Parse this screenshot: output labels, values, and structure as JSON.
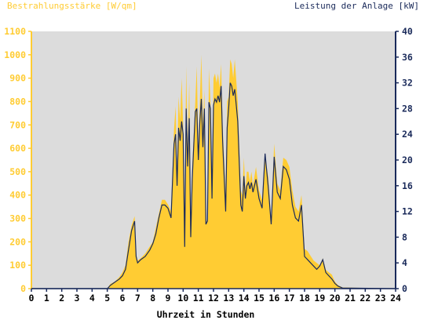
{
  "chart_data": {
    "type": "area",
    "title_left": "Bestrahlungsstärke [W/qm]",
    "title_right": "Leistung der Anlage [kW]",
    "xlabel": "Uhrzeit in Stunden",
    "x_ticks": [
      "0",
      "1",
      "2",
      "3",
      "4",
      "5",
      "6",
      "7",
      "8",
      "9",
      "10",
      "11",
      "12",
      "13",
      "14",
      "15",
      "16",
      "17",
      "18",
      "19",
      "20",
      "21",
      "22",
      "23",
      "24"
    ],
    "xlim": [
      0,
      24
    ],
    "y_left_ticks": [
      "0",
      "100",
      "200",
      "300",
      "400",
      "500",
      "600",
      "700",
      "800",
      "900",
      "1000",
      "1100"
    ],
    "ylim_left": [
      0,
      1100
    ],
    "y_right_ticks": [
      "0",
      "4",
      "8",
      "12",
      "16",
      "20",
      "24",
      "28",
      "32",
      "36",
      "40"
    ],
    "ylim_right": [
      0,
      40
    ],
    "grid": false,
    "colors": {
      "plot_background": "#dcdcdc",
      "irradiance_fill": "#ffcc33",
      "power_line": "#1a2a5a",
      "left_axis": "#ffcc33",
      "right_axis": "#1a2a5a",
      "axis_text_left": "#ffcc33",
      "axis_text_right": "#1a2a5a"
    },
    "series": [
      {
        "axis": "left",
        "style": "filled-area",
        "x": [
          0,
          5.0,
          5.2,
          5.5,
          5.8,
          6.0,
          6.2,
          6.4,
          6.6,
          6.8,
          6.9,
          7.0,
          7.2,
          7.5,
          7.8,
          8.0,
          8.2,
          8.4,
          8.6,
          8.8,
          9.0,
          9.2,
          9.4,
          9.5,
          9.6,
          9.7,
          9.8,
          9.9,
          10.0,
          10.1,
          10.2,
          10.3,
          10.4,
          10.5,
          10.6,
          10.8,
          10.9,
          11.0,
          11.1,
          11.2,
          11.3,
          11.4,
          11.5,
          11.6,
          11.7,
          11.8,
          11.9,
          12.0,
          12.1,
          12.2,
          12.3,
          12.4,
          12.5,
          12.6,
          12.8,
          12.9,
          13.0,
          13.1,
          13.2,
          13.3,
          13.4,
          13.6,
          13.8,
          13.9,
          14.0,
          14.1,
          14.2,
          14.3,
          14.4,
          14.5,
          14.6,
          14.8,
          15.0,
          15.2,
          15.4,
          15.6,
          15.8,
          16.0,
          16.2,
          16.4,
          16.6,
          16.8,
          17.0,
          17.2,
          17.4,
          17.6,
          17.8,
          18.0,
          18.2,
          18.4,
          18.6,
          18.8,
          19.0,
          19.2,
          19.4,
          19.6,
          19.8,
          20.0,
          20.2,
          20.5,
          24
        ],
        "y": [
          0,
          0,
          20,
          30,
          50,
          70,
          100,
          200,
          270,
          310,
          150,
          120,
          130,
          150,
          180,
          200,
          260,
          320,
          380,
          380,
          360,
          330,
          680,
          780,
          500,
          820,
          720,
          900,
          700,
          300,
          950,
          600,
          880,
          300,
          520,
          800,
          950,
          600,
          800,
          1000,
          700,
          850,
          280,
          300,
          940,
          800,
          400,
          900,
          920,
          880,
          920,
          860,
          960,
          700,
          400,
          800,
          820,
          980,
          960,
          900,
          980,
          800,
          420,
          400,
          560,
          420,
          500,
          500,
          460,
          500,
          440,
          520,
          420,
          380,
          560,
          480,
          300,
          620,
          450,
          420,
          560,
          550,
          520,
          420,
          350,
          330,
          400,
          170,
          160,
          140,
          120,
          110,
          100,
          130,
          80,
          70,
          60,
          30,
          15,
          5,
          0
        ]
      },
      {
        "axis": "right",
        "style": "line",
        "x": [
          0,
          5.0,
          5.2,
          5.5,
          5.8,
          6.0,
          6.2,
          6.4,
          6.6,
          6.8,
          6.9,
          7.0,
          7.2,
          7.5,
          7.8,
          8.0,
          8.2,
          8.4,
          8.6,
          8.8,
          9.0,
          9.2,
          9.4,
          9.5,
          9.6,
          9.7,
          9.8,
          9.9,
          10.0,
          10.1,
          10.2,
          10.3,
          10.4,
          10.5,
          10.6,
          10.8,
          10.9,
          11.0,
          11.1,
          11.2,
          11.3,
          11.4,
          11.5,
          11.6,
          11.7,
          11.8,
          11.9,
          12.0,
          12.1,
          12.2,
          12.3,
          12.4,
          12.5,
          12.6,
          12.8,
          12.9,
          13.0,
          13.1,
          13.2,
          13.3,
          13.4,
          13.6,
          13.8,
          13.9,
          14.0,
          14.1,
          14.2,
          14.3,
          14.4,
          14.5,
          14.6,
          14.8,
          15.0,
          15.2,
          15.4,
          15.6,
          15.8,
          16.0,
          16.2,
          16.4,
          16.6,
          16.8,
          17.0,
          17.2,
          17.4,
          17.6,
          17.8,
          18.0,
          18.2,
          18.4,
          18.6,
          18.8,
          19.0,
          19.2,
          19.4,
          19.6,
          19.8,
          20.0,
          20.2,
          20.5,
          24
        ],
        "y": [
          0,
          0,
          0.5,
          1.0,
          1.5,
          2.0,
          3.0,
          6.0,
          9.0,
          10.5,
          5.0,
          4.0,
          4.5,
          5.0,
          6.0,
          7.0,
          8.5,
          11.0,
          13.0,
          13.0,
          12.5,
          11.0,
          22.5,
          24.0,
          16.0,
          25.0,
          23.0,
          26.0,
          24.0,
          6.5,
          28.0,
          19.0,
          26.5,
          8.0,
          17.0,
          27.5,
          28.0,
          20.0,
          26.0,
          29.5,
          22.0,
          28.0,
          10.0,
          10.5,
          29.0,
          28.0,
          14.0,
          28.5,
          29.5,
          29.0,
          30.0,
          29.0,
          31.5,
          23.0,
          12.0,
          25.0,
          28.0,
          32.0,
          31.5,
          30.0,
          31.0,
          26.0,
          13.0,
          12.0,
          17.5,
          14.0,
          16.0,
          16.5,
          15.5,
          16.5,
          15.0,
          17.0,
          14.0,
          12.5,
          21.0,
          16.0,
          10.0,
          20.5,
          15.0,
          14.0,
          19.0,
          18.5,
          17.0,
          13.0,
          11.0,
          10.5,
          13.0,
          5.0,
          4.5,
          4.0,
          3.5,
          3.0,
          3.5,
          4.5,
          2.5,
          2.0,
          1.5,
          0.8,
          0.4,
          0.1,
          0
        ]
      }
    ]
  }
}
